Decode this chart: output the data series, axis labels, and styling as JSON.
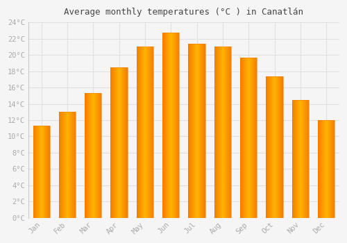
{
  "title": "Average monthly temperatures (°C ) in Canatlán",
  "months": [
    "Jan",
    "Feb",
    "Mar",
    "Apr",
    "May",
    "Jun",
    "Jul",
    "Aug",
    "Sep",
    "Oct",
    "Nov",
    "Dec"
  ],
  "values": [
    11.3,
    13.0,
    15.3,
    18.5,
    21.0,
    22.7,
    21.4,
    21.0,
    19.7,
    17.4,
    14.5,
    12.0
  ],
  "bar_color_center": "#FFB300",
  "bar_color_edge": "#F57C00",
  "background_color": "#f5f5f5",
  "grid_color": "#e0e0e0",
  "ylim": [
    0,
    24
  ],
  "ytick_step": 2,
  "title_fontsize": 9,
  "tick_fontsize": 7.5,
  "tick_color": "#aaaaaa",
  "title_color": "#444444"
}
